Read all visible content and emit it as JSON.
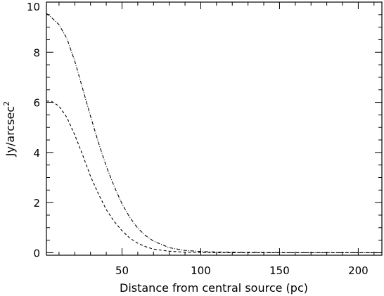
{
  "chart_data": {
    "type": "line",
    "title": "",
    "xlabel": "Distance from central source (pc)",
    "ylabel": "Jy/arcsec",
    "ylabel_superscript": "2",
    "xlim": [
      2,
      215
    ],
    "ylim": [
      -0.1,
      10
    ],
    "xticks": [
      50,
      100,
      150,
      200
    ],
    "xtick_labels": [
      "50",
      "100",
      "150",
      "200"
    ],
    "xminor_step": 10,
    "yticks": [
      0,
      2,
      4,
      6,
      8,
      10
    ],
    "ytick_labels": [
      "0",
      "2",
      "4",
      "6",
      "8",
      "10"
    ],
    "yminor_step": 0.5,
    "grid": false,
    "legend": "none",
    "series": [
      {
        "style": "dash-dot",
        "x": [
          2,
          5,
          10,
          15,
          20,
          25,
          30,
          35,
          40,
          45,
          50,
          55,
          60,
          65,
          70,
          80,
          90,
          100,
          110,
          120,
          140,
          160,
          180,
          200,
          215
        ],
        "y": [
          9.55,
          9.4,
          9.1,
          8.55,
          7.65,
          6.55,
          5.45,
          4.4,
          3.45,
          2.65,
          1.95,
          1.4,
          0.98,
          0.68,
          0.46,
          0.2,
          0.09,
          0.05,
          0.03,
          0.02,
          0.01,
          0.0,
          0.0,
          0.0,
          0.0
        ]
      },
      {
        "style": "dashed",
        "x": [
          2,
          5,
          10,
          15,
          20,
          25,
          30,
          35,
          40,
          45,
          50,
          55,
          60,
          65,
          70,
          80,
          90,
          100,
          110,
          120,
          140,
          160,
          180,
          200,
          215
        ],
        "y": [
          6.05,
          6.05,
          5.85,
          5.4,
          4.7,
          3.9,
          3.05,
          2.35,
          1.72,
          1.25,
          0.88,
          0.58,
          0.38,
          0.24,
          0.14,
          0.06,
          0.02,
          0.01,
          0.0,
          0.0,
          0.0,
          0.0,
          0.0,
          0.0,
          0.0
        ]
      }
    ]
  }
}
